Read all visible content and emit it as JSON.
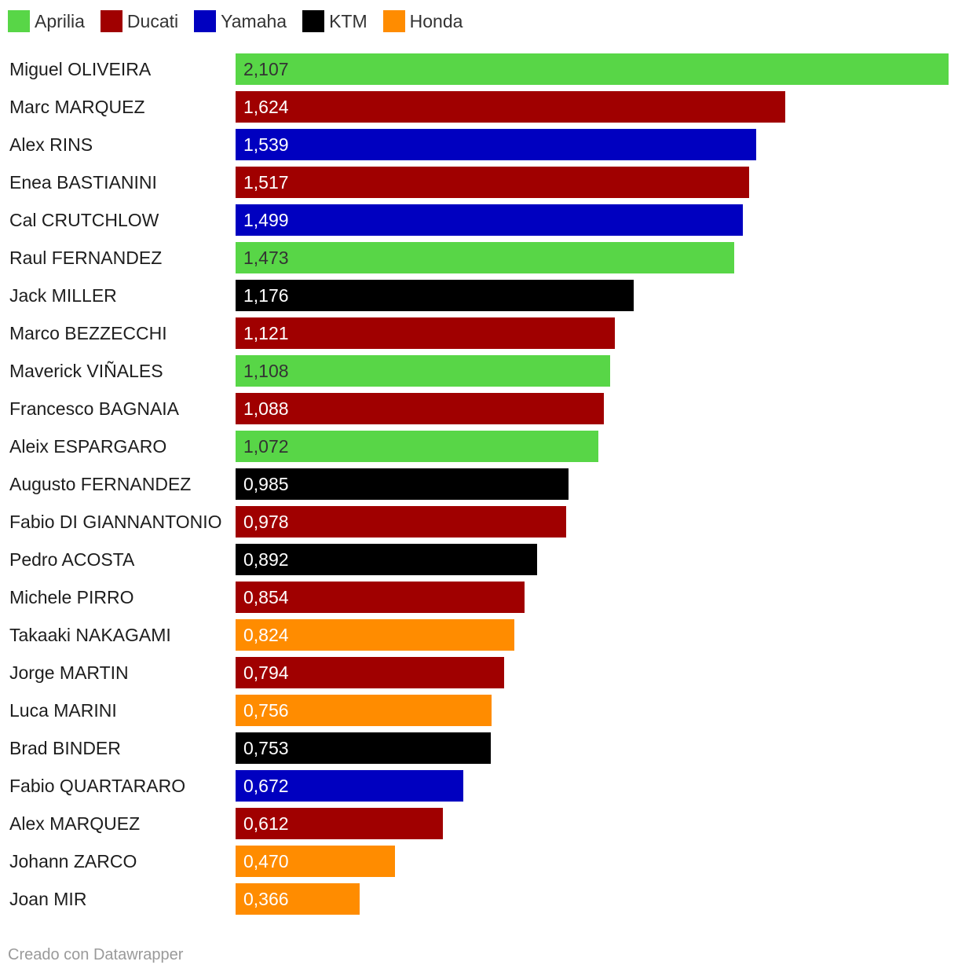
{
  "chart_data": {
    "type": "bar",
    "orientation": "horizontal",
    "title": "",
    "legend": {
      "placement": "top-left",
      "entries": [
        {
          "name": "Aprilia",
          "color": "#58d647"
        },
        {
          "name": "Ducati",
          "color": "#a00000"
        },
        {
          "name": "Yamaha",
          "color": "#0000c0"
        },
        {
          "name": "KTM",
          "color": "#000000"
        },
        {
          "name": "Honda",
          "color": "#ff8c00"
        }
      ]
    },
    "value_max": 2.107,
    "rows": [
      {
        "category": "Miguel OLIVEIRA",
        "value": 2.107,
        "label": "2,107",
        "manufacturer": "Aprilia"
      },
      {
        "category": "Marc MARQUEZ",
        "value": 1.624,
        "label": "1,624",
        "manufacturer": "Ducati"
      },
      {
        "category": "Alex RINS",
        "value": 1.539,
        "label": "1,539",
        "manufacturer": "Yamaha"
      },
      {
        "category": "Enea BASTIANINI",
        "value": 1.517,
        "label": "1,517",
        "manufacturer": "Ducati"
      },
      {
        "category": "Cal CRUTCHLOW",
        "value": 1.499,
        "label": "1,499",
        "manufacturer": "Yamaha"
      },
      {
        "category": "Raul FERNANDEZ",
        "value": 1.473,
        "label": "1,473",
        "manufacturer": "Aprilia"
      },
      {
        "category": "Jack MILLER",
        "value": 1.176,
        "label": "1,176",
        "manufacturer": "KTM"
      },
      {
        "category": "Marco BEZZECCHI",
        "value": 1.121,
        "label": "1,121",
        "manufacturer": "Ducati"
      },
      {
        "category": "Maverick VIÑALES",
        "value": 1.108,
        "label": "1,108",
        "manufacturer": "Aprilia"
      },
      {
        "category": "Francesco BAGNAIA",
        "value": 1.088,
        "label": "1,088",
        "manufacturer": "Ducati"
      },
      {
        "category": "Aleix ESPARGARO",
        "value": 1.072,
        "label": "1,072",
        "manufacturer": "Aprilia"
      },
      {
        "category": "Augusto FERNANDEZ",
        "value": 0.985,
        "label": "0,985",
        "manufacturer": "KTM"
      },
      {
        "category": "Fabio DI GIANNANTONIO",
        "value": 0.978,
        "label": "0,978",
        "manufacturer": "Ducati"
      },
      {
        "category": "Pedro ACOSTA",
        "value": 0.892,
        "label": "0,892",
        "manufacturer": "KTM"
      },
      {
        "category": "Michele PIRRO",
        "value": 0.854,
        "label": "0,854",
        "manufacturer": "Ducati"
      },
      {
        "category": "Takaaki NAKAGAMI",
        "value": 0.824,
        "label": "0,824",
        "manufacturer": "Honda"
      },
      {
        "category": "Jorge MARTIN",
        "value": 0.794,
        "label": "0,794",
        "manufacturer": "Ducati"
      },
      {
        "category": "Luca MARINI",
        "value": 0.756,
        "label": "0,756",
        "manufacturer": "Honda"
      },
      {
        "category": "Brad BINDER",
        "value": 0.753,
        "label": "0,753",
        "manufacturer": "KTM"
      },
      {
        "category": "Fabio QUARTARARO",
        "value": 0.672,
        "label": "0,672",
        "manufacturer": "Yamaha"
      },
      {
        "category": "Alex MARQUEZ",
        "value": 0.612,
        "label": "0,612",
        "manufacturer": "Ducati"
      },
      {
        "category": "Johann ZARCO",
        "value": 0.47,
        "label": "0,470",
        "manufacturer": "Honda"
      },
      {
        "category": "Joan MIR",
        "value": 0.366,
        "label": "0,366",
        "manufacturer": "Honda"
      }
    ]
  },
  "value_label_colors": {
    "Aprilia": "#333333",
    "Ducati": "#ffffff",
    "Yamaha": "#ffffff",
    "KTM": "#ffffff",
    "Honda": "#ffffff"
  },
  "footer": {
    "credit": "Creado con Datawrapper"
  }
}
